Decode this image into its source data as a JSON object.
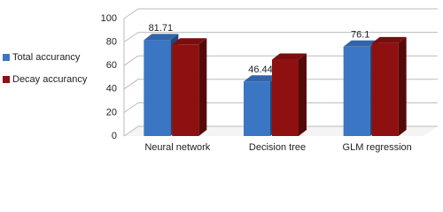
{
  "chart_data": {
    "type": "bar3d",
    "categories": [
      "Neural network",
      "Decision tree",
      "GLM regression"
    ],
    "series": [
      {
        "name": "Total accurancy",
        "color": "#3b76c4",
        "values": [
          81.71,
          46.44,
          76.1
        ],
        "show_labels": true
      },
      {
        "name": "Decay accurancy",
        "color": "#8e1010",
        "values": [
          78,
          65,
          79
        ],
        "show_labels": false
      }
    ],
    "ylim": [
      0,
      100
    ],
    "yticks": [
      0,
      20,
      40,
      60,
      80,
      100
    ],
    "grid": true,
    "legend": "left"
  }
}
